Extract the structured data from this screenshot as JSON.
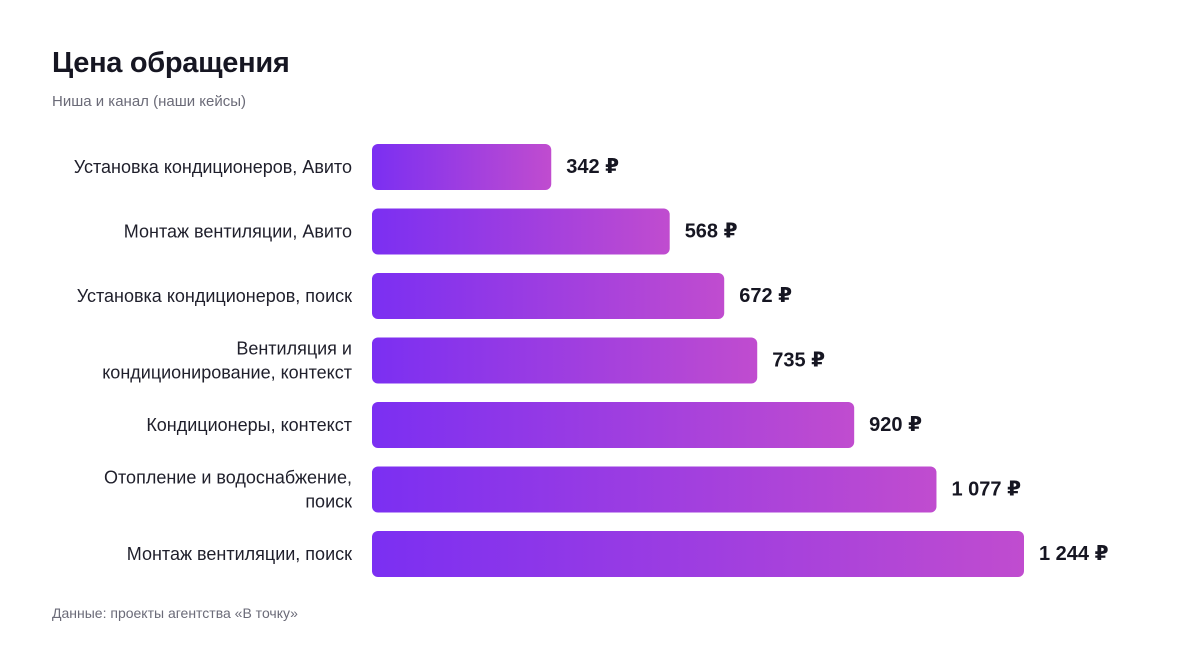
{
  "chart_data": {
    "type": "bar",
    "orientation": "horizontal",
    "title": "Цена обращения",
    "subtitle": "Ниша и канал (наши кейсы)",
    "source": "Данные: проекты агентства «В точку»",
    "categories": [
      "Установка кондиционеров, Авито",
      "Монтаж вентиляции, Авито",
      "Установка кондиционеров, поиск",
      "Вентиляция и кондиционирование, контекст",
      "Кондиционеры, контекст",
      "Отопление и водоснабжение, поиск",
      "Монтаж вентиляции, поиск"
    ],
    "category_lines": [
      [
        "Установка кондиционеров, Авито"
      ],
      [
        "Монтаж вентиляции, Авито"
      ],
      [
        "Установка кондиционеров, поиск"
      ],
      [
        "Вентиляция и",
        "кондиционирование, контекст"
      ],
      [
        "Кондиционеры, контекст"
      ],
      [
        "Отопление и водоснабжение,",
        "поиск"
      ],
      [
        "Монтаж вентиляции, поиск"
      ]
    ],
    "values": [
      342,
      568,
      672,
      735,
      920,
      1077,
      1244
    ],
    "value_labels": [
      "342 ₽",
      "568 ₽",
      "672 ₽",
      "735 ₽",
      "920 ₽",
      "1 077 ₽",
      "1 244 ₽"
    ],
    "unit": "₽",
    "xlim": [
      0,
      1244
    ],
    "grid": false,
    "legend": "none",
    "colors": {
      "bar_start": "#7b2ff2",
      "bar_end": "#c04ccf"
    }
  }
}
